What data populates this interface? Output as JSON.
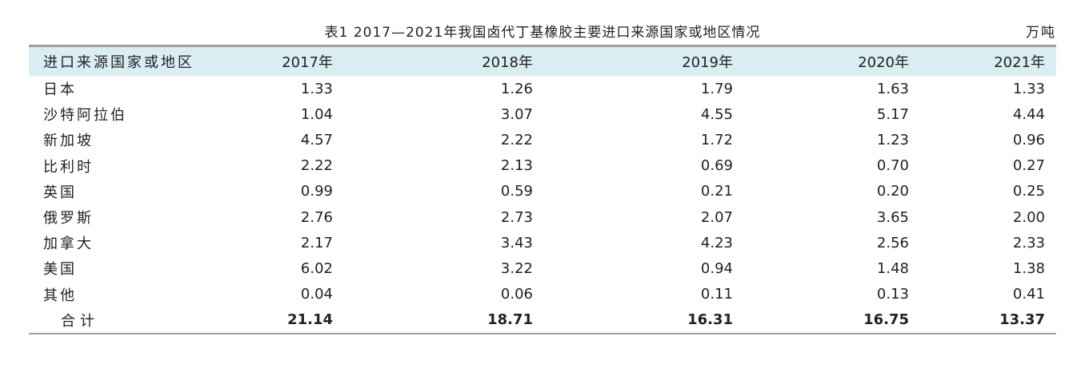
{
  "table": {
    "caption": "表1  2017—2021年我国卤代丁基橡胶主要进口来源国家或地区情况",
    "unit": "万吨",
    "headers": [
      "进口来源国家或地区",
      "2017年",
      "2018年",
      "2019年",
      "2020年",
      "2021年"
    ],
    "rows": [
      [
        "日本",
        "1.33",
        "1.26",
        "1.79",
        "1.63",
        "1.33"
      ],
      [
        "沙特阿拉伯",
        "1.04",
        "3.07",
        "4.55",
        "5.17",
        "4.44"
      ],
      [
        "新加坡",
        "4.57",
        "2.22",
        "1.72",
        "1.23",
        "0.96"
      ],
      [
        "比利时",
        "2.22",
        "2.13",
        "0.69",
        "0.70",
        "0.27"
      ],
      [
        "英国",
        "0.99",
        "0.59",
        "0.21",
        "0.20",
        "0.25"
      ],
      [
        "俄罗斯",
        "2.76",
        "2.73",
        "2.07",
        "3.65",
        "2.00"
      ],
      [
        "加拿大",
        "2.17",
        "3.43",
        "4.23",
        "2.56",
        "2.33"
      ],
      [
        "美国",
        "6.02",
        "3.22",
        "0.94",
        "1.48",
        "1.38"
      ],
      [
        "其他",
        "0.04",
        "0.06",
        "0.11",
        "0.13",
        "0.41"
      ]
    ],
    "total": [
      "合计",
      "21.14",
      "18.71",
      "16.31",
      "16.75",
      "13.37"
    ]
  }
}
